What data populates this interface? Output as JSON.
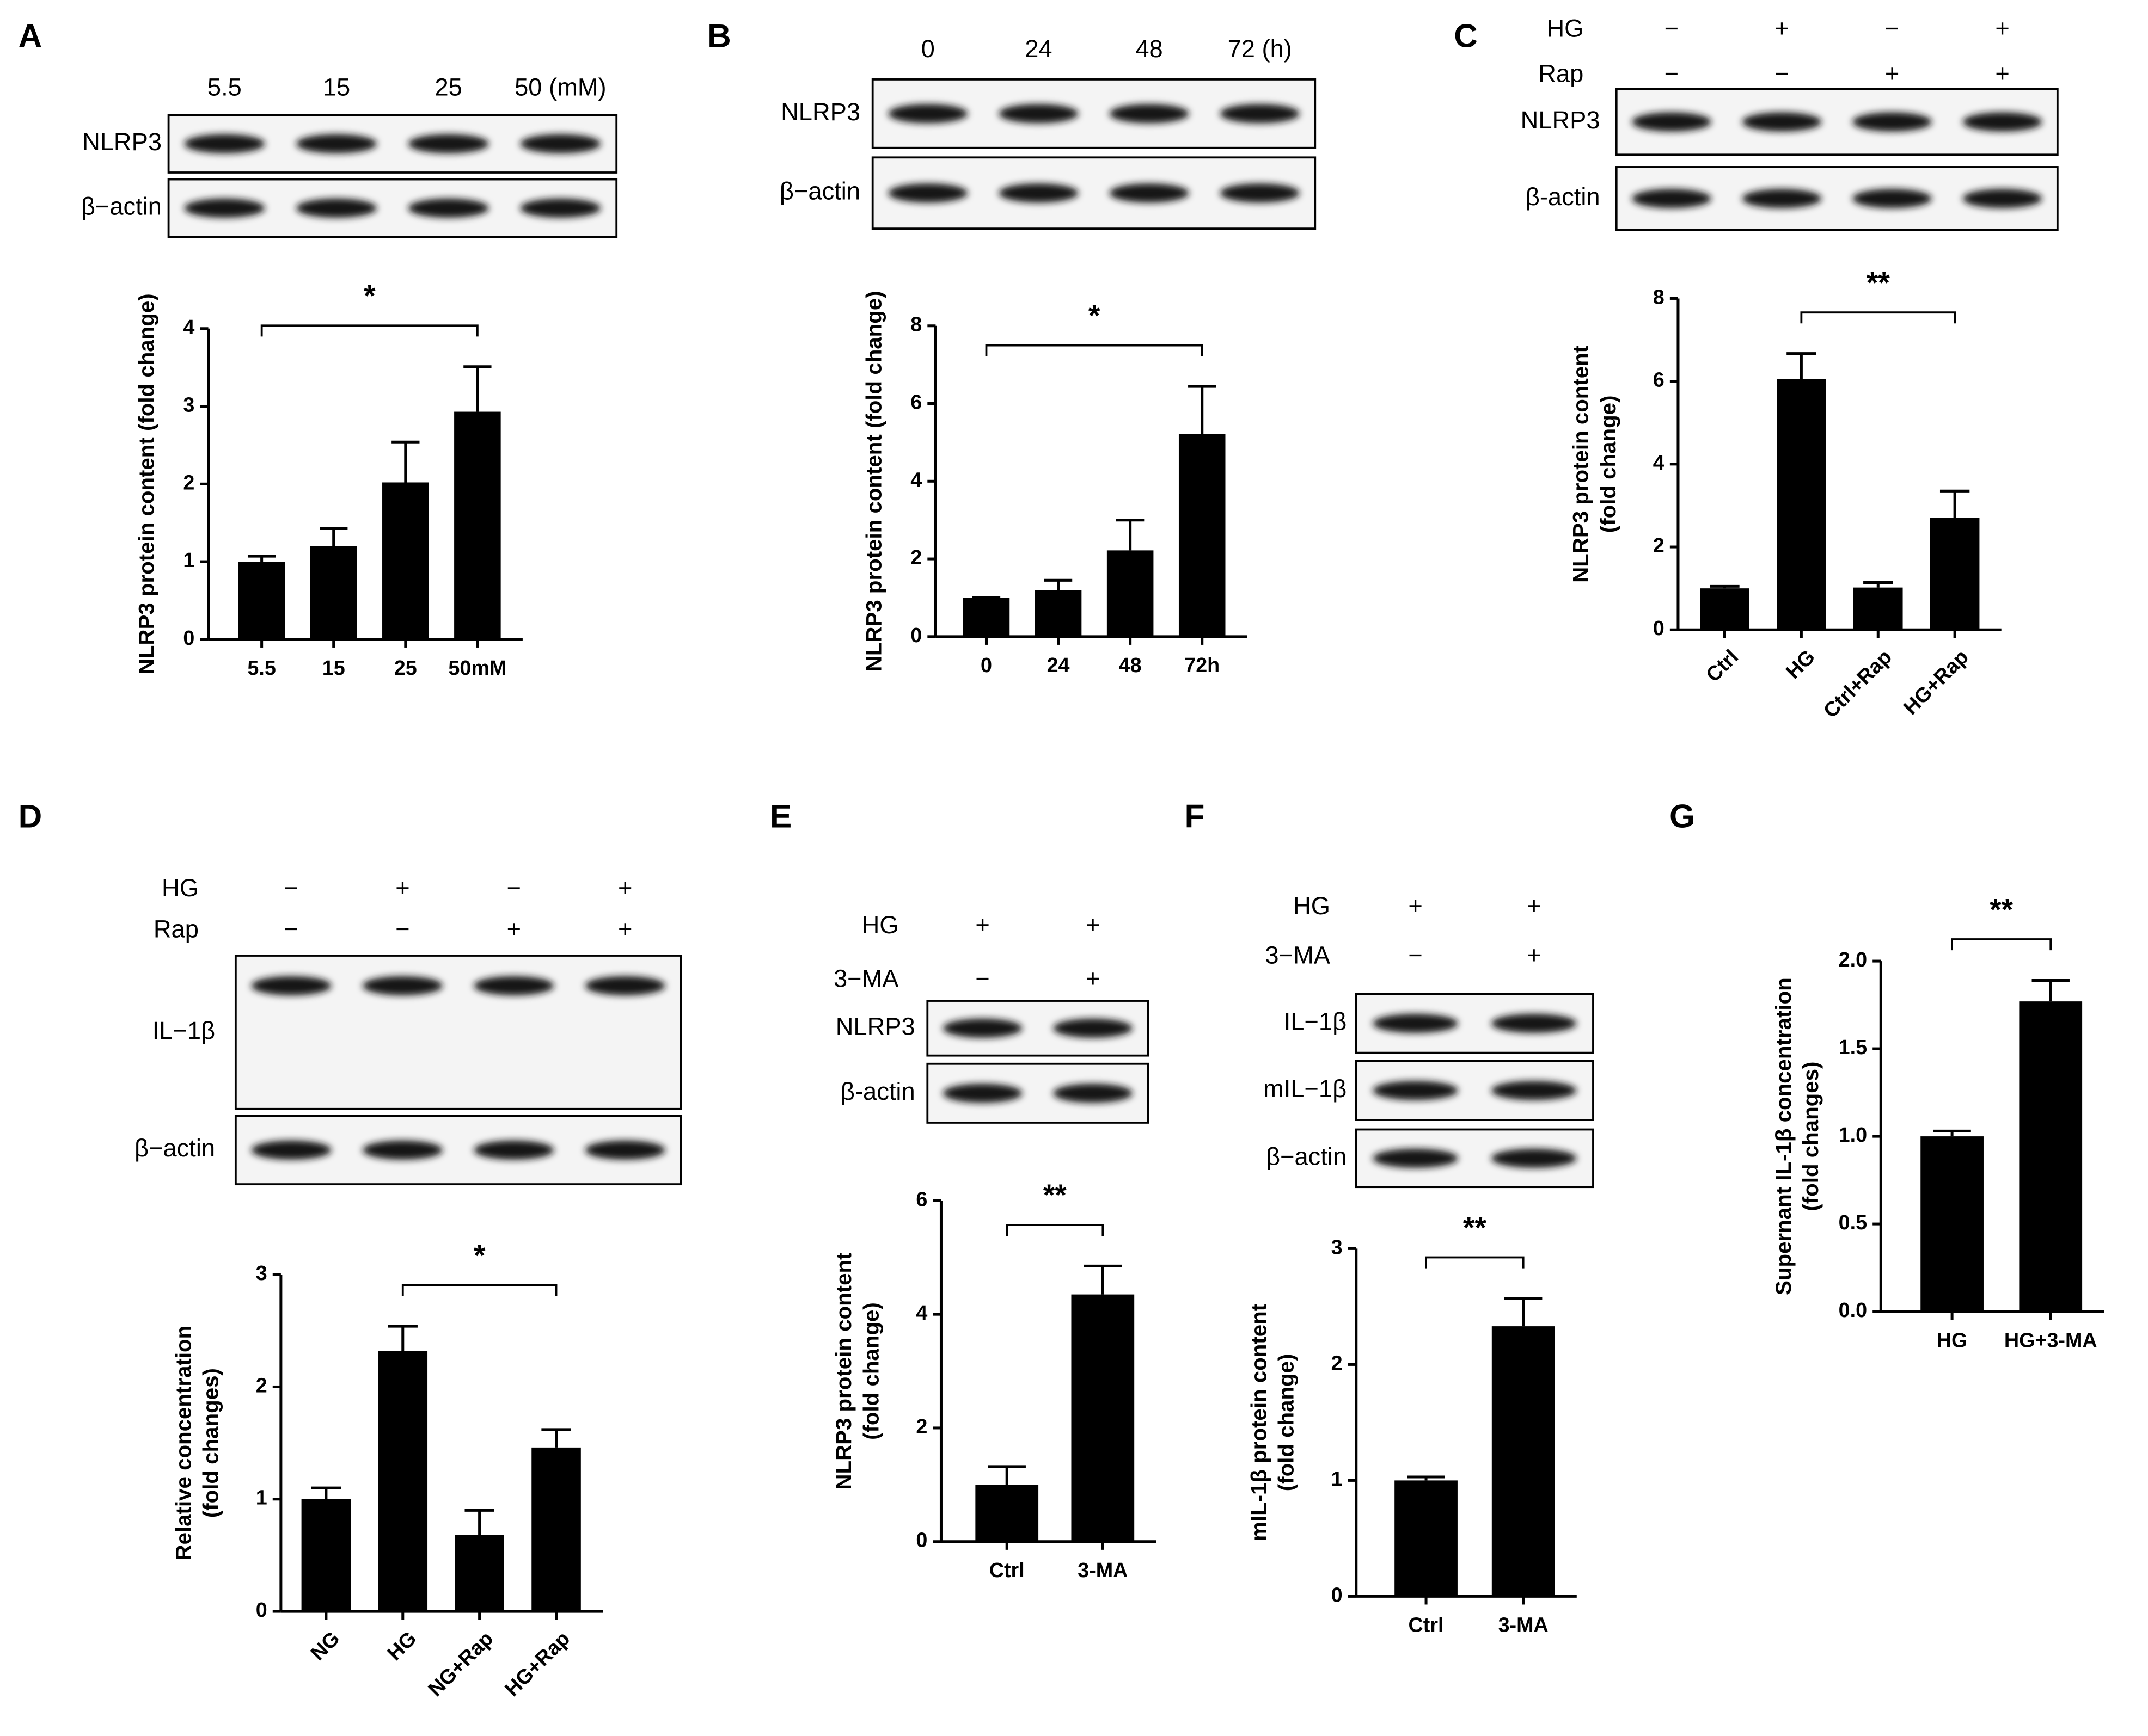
{
  "chart_data": [
    {
      "type": "bar",
      "panel": "A",
      "lanes": [
        "5.5",
        "15",
        "25",
        "50 (mM)"
      ],
      "blot_rows": [
        "NLRP3",
        "β−actin"
      ],
      "categories": [
        "5.5",
        "15",
        "25",
        "50mM"
      ],
      "values": [
        1.0,
        1.2,
        2.02,
        2.93
      ],
      "errors": [
        0.07,
        0.23,
        0.52,
        0.58
      ],
      "ylim": [
        0,
        4
      ],
      "yticks": [
        0,
        1,
        2,
        3,
        4
      ],
      "ylabel": [
        "NLRP3 protein content (fold change)"
      ],
      "significance": {
        "label": "*",
        "from": "5.5",
        "to": "50mM"
      },
      "color": "#000000"
    },
    {
      "type": "bar",
      "panel": "B",
      "lanes": [
        "0",
        "24",
        "48",
        "72 (h)"
      ],
      "blot_rows": [
        "NLRP3",
        "β−actin"
      ],
      "categories": [
        "0",
        "24",
        "48",
        "72h"
      ],
      "values": [
        1.0,
        1.2,
        2.22,
        5.22
      ],
      "errors": [
        0,
        0.25,
        0.78,
        1.22
      ],
      "ylim": [
        0,
        8
      ],
      "yticks": [
        0,
        2,
        4,
        6,
        8
      ],
      "ylabel": [
        "NLRP3 protein content (fold change)"
      ],
      "significance": {
        "label": "*",
        "from": "0",
        "to": "72h"
      },
      "color": "#000000"
    },
    {
      "type": "bar",
      "panel": "C",
      "conditions": [
        {
          "name": "HG",
          "signs": [
            "−",
            "+",
            "−",
            "+"
          ]
        },
        {
          "name": "Rap",
          "signs": [
            "−",
            "−",
            "+",
            "+"
          ]
        }
      ],
      "blot_rows": [
        "NLRP3",
        "β-actin"
      ],
      "categories": [
        "Ctrl",
        "HG",
        "Ctrl+Rap",
        "HG+Rap"
      ],
      "values": [
        1.0,
        6.05,
        1.02,
        2.7
      ],
      "errors": [
        0.05,
        0.62,
        0.12,
        0.65
      ],
      "ylim": [
        0,
        8
      ],
      "yticks": [
        0,
        2,
        4,
        6,
        8
      ],
      "ylabel": [
        "NLRP3 protein content",
        "(fold change)"
      ],
      "significance": {
        "label": "**",
        "from": "HG",
        "to": "HG+Rap"
      },
      "color": "#000000"
    },
    {
      "type": "bar",
      "panel": "D",
      "conditions": [
        {
          "name": "HG",
          "signs": [
            "−",
            "+",
            "−",
            "+"
          ]
        },
        {
          "name": "Rap",
          "signs": [
            "−",
            "−",
            "+",
            "+"
          ]
        }
      ],
      "blot_rows": [
        "IL−1β",
        "β−actin"
      ],
      "categories": [
        "NG",
        "HG",
        "NG+Rap",
        "HG+Rap"
      ],
      "values": [
        1.0,
        2.32,
        0.68,
        1.46
      ],
      "errors": [
        0.1,
        0.22,
        0.22,
        0.16
      ],
      "ylim": [
        0,
        3
      ],
      "yticks": [
        0,
        1,
        2,
        3
      ],
      "ylabel": [
        "Relative concentration",
        "(fold changes)"
      ],
      "significance": {
        "label": "*",
        "from": "HG",
        "to": "HG+Rap"
      },
      "color": "#000000"
    },
    {
      "type": "bar",
      "panel": "E",
      "conditions": [
        {
          "name": "HG",
          "signs": [
            "+",
            "+"
          ]
        },
        {
          "name": "3−MA",
          "signs": [
            "−",
            "+"
          ]
        }
      ],
      "blot_rows": [
        "NLRP3",
        "β-actin"
      ],
      "categories": [
        "Ctrl",
        "3-MA"
      ],
      "values": [
        1.0,
        4.35
      ],
      "errors": [
        0.32,
        0.5
      ],
      "ylim": [
        0,
        6
      ],
      "yticks": [
        0,
        2,
        4,
        6
      ],
      "ylabel": [
        "NLRP3 protein content",
        "(fold change)"
      ],
      "significance": {
        "label": "**",
        "from": "Ctrl",
        "to": "3-MA"
      },
      "color": "#000000"
    },
    {
      "type": "bar",
      "panel": "F",
      "conditions": [
        {
          "name": "HG",
          "signs": [
            "+",
            "+"
          ]
        },
        {
          "name": "3−MA",
          "signs": [
            "−",
            "+"
          ]
        }
      ],
      "blot_rows": [
        "IL−1β",
        "mIL−1β",
        "β−actin"
      ],
      "categories": [
        "Ctrl",
        "3-MA"
      ],
      "values": [
        1.0,
        2.33
      ],
      "errors": [
        0.03,
        0.24
      ],
      "ylim": [
        0,
        3
      ],
      "yticks": [
        0,
        1,
        2,
        3
      ],
      "ylabel": [
        "mIL-1β protein content",
        "(fold change)"
      ],
      "significance": {
        "label": "**",
        "from": "Ctrl",
        "to": "3-MA"
      },
      "color": "#000000"
    },
    {
      "type": "bar",
      "panel": "G",
      "categories": [
        "HG",
        "HG+3-MA"
      ],
      "values": [
        1.0,
        1.77
      ],
      "errors": [
        0.03,
        0.12
      ],
      "ylim": [
        0,
        2
      ],
      "yticks": [
        {
          "value": 0,
          "label": "0.0"
        },
        0.5,
        {
          "value": 1,
          "label": "1.0"
        },
        1.5,
        {
          "value": 2,
          "label": "2.0"
        }
      ],
      "ylabel": [
        "Supernant IL-1β concentration",
        "(fold changes)"
      ],
      "significance": {
        "label": "**",
        "from": "HG",
        "to": "HG+3-MA"
      },
      "color": "#000000"
    }
  ]
}
